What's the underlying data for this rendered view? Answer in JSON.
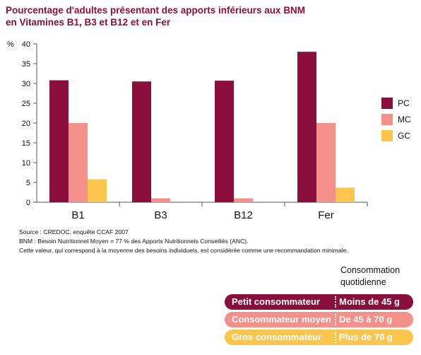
{
  "title_line1": "Pourcentage d'adultes présentant des apports inférieurs aux BNM",
  "title_line2": "en Vitamines B1, B3 et B12 et en Fer",
  "colors": {
    "PC": "#8b0f3c",
    "MC": "#f4908a",
    "GC": "#fcc64e",
    "title": "#8a1038",
    "axis": "#555555"
  },
  "chart_data": {
    "type": "bar",
    "ylabel": "%",
    "ylim": [
      0,
      40
    ],
    "yticks": [
      0,
      5,
      10,
      15,
      20,
      25,
      30,
      35,
      40
    ],
    "categories": [
      "B1",
      "B3",
      "B12",
      "Fer"
    ],
    "series": [
      {
        "name": "PC",
        "values": [
          30.8,
          30.5,
          30.7,
          38.0
        ]
      },
      {
        "name": "MC",
        "values": [
          20.0,
          1.0,
          1.0,
          20.0
        ]
      },
      {
        "name": "GC",
        "values": [
          5.8,
          0,
          0,
          3.7
        ]
      }
    ],
    "legend": "right",
    "grid": false
  },
  "notes": [
    "Source : CREDOC, enquête CCAF 2007",
    "BNM : Besoin Nutritionnel Moyen = 77 % des Apports Nutritionnels Conseillés (ANC).",
    "Cette valeur, qui correspond à la moyenne des besoins individuels, est considérée comme une recommandation minimale."
  ],
  "consommation": {
    "title_line1": "Consommation",
    "title_line2": "quotidienne",
    "rows": [
      {
        "label": "Petit consommateur",
        "value": "Moins de 45 g",
        "color": "#8b0f3c"
      },
      {
        "label": "Consommateur moyen",
        "value": "De 45 à 70 g",
        "color": "#f4908a"
      },
      {
        "label": "Gros consommateur",
        "value": "Plus de 70 g",
        "color": "#fcc64e"
      }
    ]
  }
}
